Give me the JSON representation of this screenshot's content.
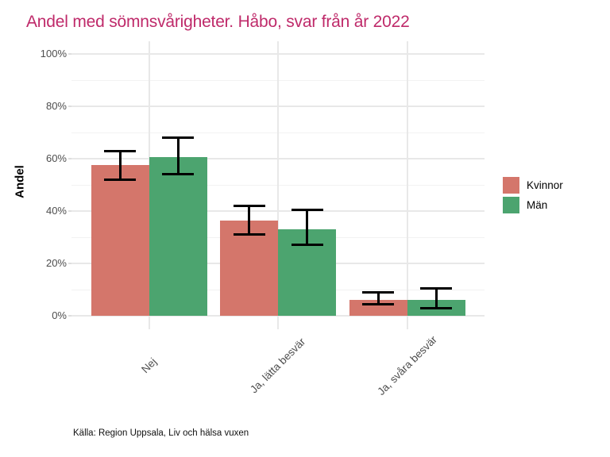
{
  "title": "Andel med sömnsvårigheter. Håbo, svar från år 2022",
  "caption": "Källa: Region Uppsala, Liv och hälsa vuxen",
  "colors": {
    "title": "#BF2A6A",
    "background": "#FFFFFF",
    "grid_major": "#E8E8E8",
    "grid_minor": "#F2F2F2",
    "axis_text": "#4D4D4D",
    "error_bar": "#000000",
    "kvinnor": "#D4766B",
    "man": "#4CA46F"
  },
  "legend": {
    "items": [
      {
        "label": "Kvinnor",
        "color": "#D4766B"
      },
      {
        "label": "Män",
        "color": "#4CA46F"
      }
    ]
  },
  "chart_data": {
    "type": "bar",
    "title": "Andel med sömnsvårigheter. Håbo, svar från år 2022",
    "xlabel": "",
    "ylabel": "Andel",
    "unit": "percent",
    "categories": [
      "Nej",
      "Ja, lätta besvär",
      "Ja, svåra besvär"
    ],
    "series": [
      {
        "name": "Kvinnor",
        "color": "#D4766B",
        "values": [
          57.5,
          36.5,
          6
        ],
        "error_low": [
          52,
          31,
          4.5
        ],
        "error_high": [
          63,
          42,
          9
        ]
      },
      {
        "name": "Män",
        "color": "#4CA46F",
        "values": [
          60.5,
          33,
          6
        ],
        "error_low": [
          54,
          27,
          3
        ],
        "error_high": [
          68,
          40.5,
          10.5
        ]
      }
    ],
    "ylim": [
      0,
      100
    ],
    "ytick_values": [
      0,
      20,
      40,
      60,
      80,
      100
    ],
    "ytick_labels": [
      "0%",
      "20%",
      "40%",
      "60%",
      "80%",
      "100%"
    ],
    "ytick_minor_values": [
      10,
      30,
      50,
      70,
      90
    ],
    "grid": "horizontal major+minor, vertical major at category centers",
    "legend_position": "right",
    "error_bars": true
  }
}
